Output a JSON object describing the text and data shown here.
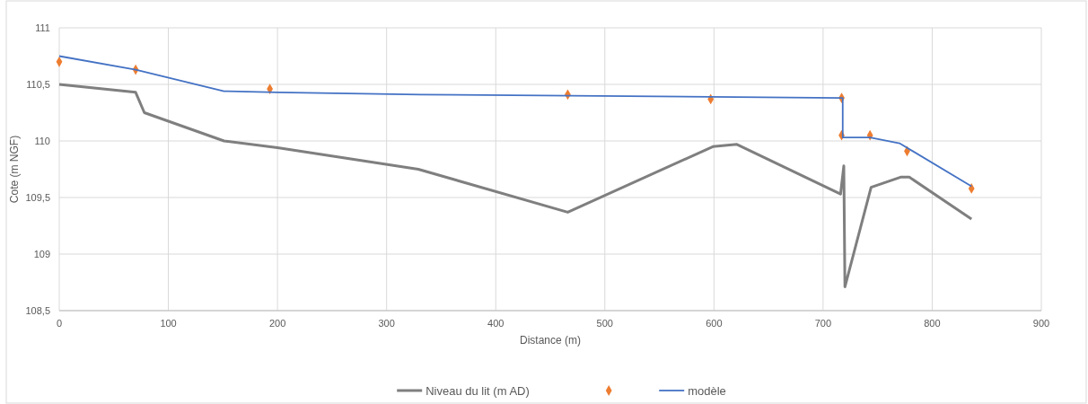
{
  "chart_data": {
    "type": "line",
    "xlabel": "Distance (m)",
    "ylabel": "Cote (m NGF)",
    "xlim": [
      0,
      900
    ],
    "xticks": [
      0,
      100,
      200,
      300,
      400,
      500,
      600,
      700,
      800,
      900
    ],
    "ylim": [
      108.5,
      111
    ],
    "yticks": [
      {
        "value": 108.5,
        "label": "108,5"
      },
      109,
      {
        "value": 109.5,
        "label": "109,5"
      },
      110,
      {
        "value": 110.5,
        "label": "110,5"
      },
      111
    ],
    "grid": true,
    "legend": "bottom",
    "series": [
      {
        "name": "Niveau du lit (m AD)",
        "color": "#7f7f7f",
        "x": [
          0,
          70,
          78,
          151,
          200,
          329,
          466,
          599,
          621,
          716,
          719,
          720,
          744,
          771,
          779,
          836
        ],
        "values": [
          110.5,
          110.43,
          110.25,
          110.0,
          109.94,
          109.75,
          109.37,
          109.95,
          109.97,
          109.53,
          109.78,
          108.71,
          109.59,
          109.68,
          109.68,
          109.31
        ]
      },
      {
        "type": "scatter",
        "marker": "diamond",
        "color": "#ed7d31",
        "x": [
          0,
          70,
          193,
          466,
          597,
          717,
          717,
          743,
          777,
          836
        ],
        "values": [
          110.7,
          110.63,
          110.46,
          110.41,
          110.37,
          110.38,
          110.05,
          110.05,
          109.91,
          109.58
        ]
      },
      {
        "name": "modèle",
        "color": "#4472c4",
        "x": [
          0,
          70,
          151,
          200,
          331,
          718,
          718,
          743,
          770,
          836
        ],
        "values": [
          110.75,
          110.63,
          110.44,
          110.43,
          110.41,
          110.38,
          110.03,
          110.03,
          109.98,
          109.6
        ]
      }
    ]
  }
}
